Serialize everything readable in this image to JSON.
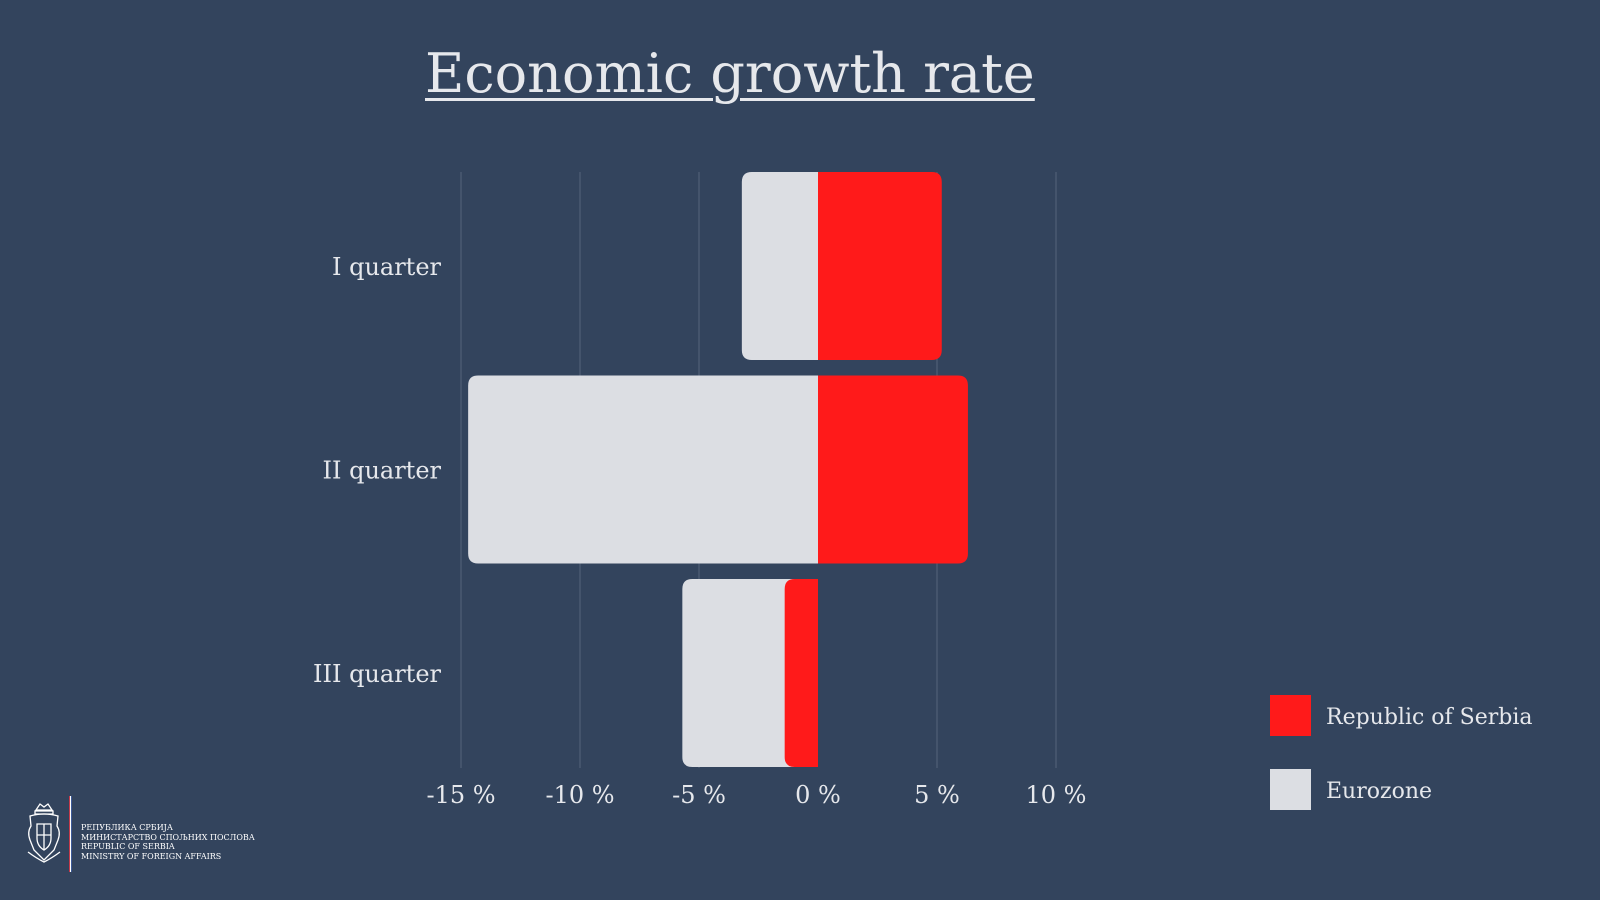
{
  "chart_data": {
    "type": "bar",
    "orientation": "horizontal",
    "stacked": "overlap",
    "title": "Economic growth rate",
    "categories": [
      "I quarter",
      "II quarter",
      "III quarter"
    ],
    "series": [
      {
        "name": "Republic of Serbia",
        "values": [
          5.2,
          6.3,
          -1.4
        ],
        "color": "#ff1a1a"
      },
      {
        "name": "Eurozone",
        "values": [
          -3.2,
          -14.7,
          -5.7
        ],
        "color": "#dcdee3"
      }
    ],
    "x_ticks": [
      -15,
      -10,
      -5,
      0,
      5,
      10
    ],
    "x_tick_labels": [
      "-15 %",
      "-10 %",
      "-5 %",
      "0 %",
      "5 %",
      "10 %"
    ],
    "xlim": [
      -15,
      10
    ],
    "grid": true,
    "legend": "bottom-right"
  },
  "colors": {
    "background": "#33445d",
    "gridline": "#56657b",
    "text": "#e6e8ec"
  },
  "logo": {
    "icon": "serbia-coat-of-arms-icon",
    "lines": [
      "РЕПУБЛИКА СРБИЈА",
      "МИНИСТАРСТВО СПОЉНИХ ПОСЛОВА",
      "REPUBLIC OF SERBIA",
      "MINISTRY OF FOREIGN AFFAIRS"
    ]
  }
}
